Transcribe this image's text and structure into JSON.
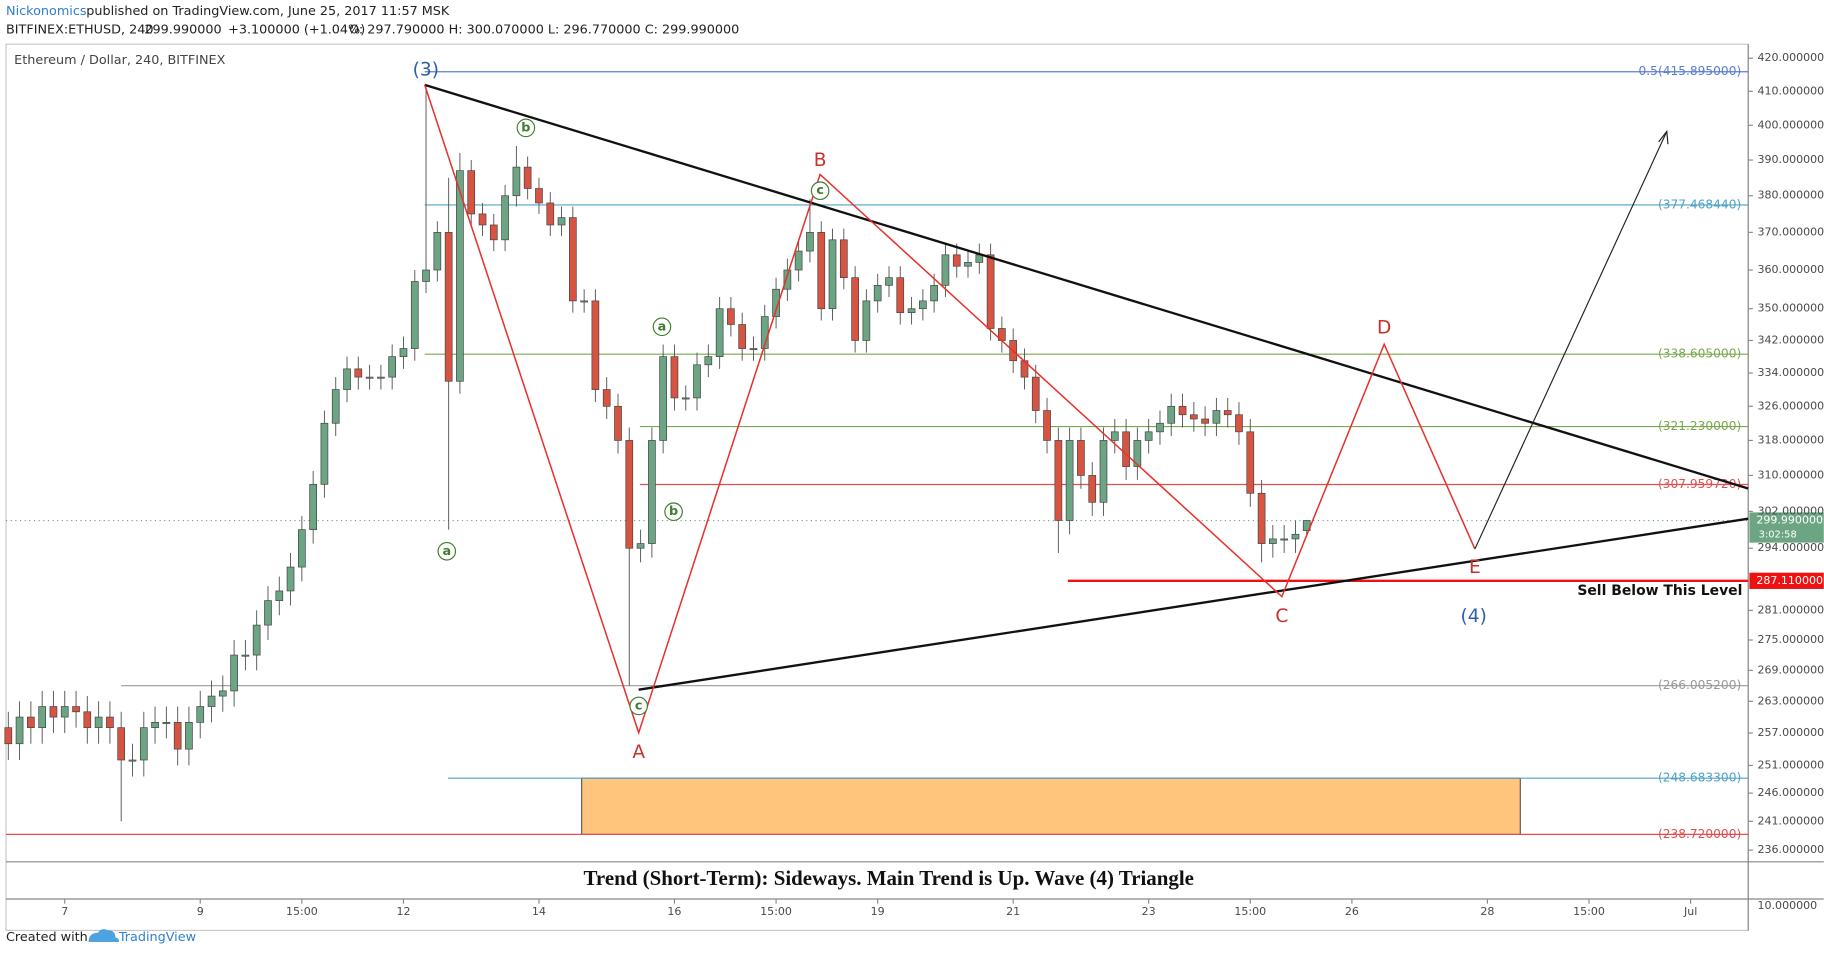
{
  "header": {
    "author": "Nickonomics",
    "published": "published on TradingView.com, June 25, 2017 11:57 MSK",
    "symbol": "BITFINEX:ETHUSD, 240",
    "last": "299.990000",
    "change": "+3.100000 (+1.04%)",
    "ohlc": "O: 297.790000 H: 300.070000 L: 296.770000 C: 299.990000"
  },
  "footer": {
    "created": "Created with",
    "brand": "TradingView"
  },
  "chart_data": {
    "type": "candlestick",
    "title": "Ethereum / Dollar, 240, BITFINEX",
    "caption": "Trend (Short-Term): Sideways. Main Trend is Up. Wave (4) Triangle",
    "note": "Sell Below This Level",
    "log_scale": true,
    "xlim": [
      6.133,
      31.85
    ],
    "ylim": [
      234.2,
      423.6
    ],
    "xticks": [
      {
        "value": 7,
        "label": "7"
      },
      {
        "value": 9,
        "label": "9"
      },
      {
        "value": 10.5,
        "label": "15:00"
      },
      {
        "value": 12,
        "label": "12"
      },
      {
        "value": 14,
        "label": "14"
      },
      {
        "value": 16,
        "label": "16"
      },
      {
        "value": 17.5,
        "label": "15:00"
      },
      {
        "value": 19,
        "label": "19"
      },
      {
        "value": 21,
        "label": "21"
      },
      {
        "value": 23,
        "label": "23"
      },
      {
        "value": 24.5,
        "label": "15:00"
      },
      {
        "value": 26,
        "label": "26"
      },
      {
        "value": 28,
        "label": "28"
      },
      {
        "value": 29.5,
        "label": "15:00"
      },
      {
        "value": 31,
        "label": "Jul"
      }
    ],
    "yticks": [
      {
        "value": 420,
        "label": "420.000000"
      },
      {
        "value": 410,
        "label": "410.000000"
      },
      {
        "value": 400,
        "label": "400.000000"
      },
      {
        "value": 390,
        "label": "390.000000"
      },
      {
        "value": 380,
        "label": "380.000000"
      },
      {
        "value": 370,
        "label": "370.000000"
      },
      {
        "value": 360,
        "label": "360.000000"
      },
      {
        "value": 350,
        "label": "350.000000"
      },
      {
        "value": 342,
        "label": "342.000000"
      },
      {
        "value": 334,
        "label": "334.000000"
      },
      {
        "value": 326,
        "label": "326.000000"
      },
      {
        "value": 318,
        "label": "318.000000"
      },
      {
        "value": 310,
        "label": "310.000000"
      },
      {
        "value": 302,
        "label": "302.000000"
      },
      {
        "value": 294,
        "label": "294.000000"
      },
      {
        "value": 281,
        "label": "281.000000"
      },
      {
        "value": 275,
        "label": "275.000000"
      },
      {
        "value": 269,
        "label": "269.000000"
      },
      {
        "value": 263,
        "label": "263.000000"
      },
      {
        "value": 257,
        "label": "257.000000"
      },
      {
        "value": 251,
        "label": "251.000000"
      },
      {
        "value": 246,
        "label": "246.000000"
      },
      {
        "value": 241,
        "label": "241.000000"
      },
      {
        "value": 236,
        "label": "236.000000"
      }
    ],
    "lower_pane_tick": "10.000000",
    "up_color": "#6ba583",
    "down_color": "#d75442",
    "x": [
      6.167,
      6.333,
      6.5,
      6.667,
      6.833,
      7,
      7.167,
      7.333,
      7.5,
      7.667,
      7.833,
      8,
      8.167,
      8.333,
      8.5,
      8.667,
      8.833,
      9,
      9.167,
      9.333,
      9.5,
      9.667,
      9.833,
      10,
      10.167,
      10.333,
      10.5,
      10.667,
      10.833,
      11,
      11.167,
      11.333,
      11.5,
      11.667,
      11.833,
      12,
      12.167,
      12.333,
      12.5,
      12.667,
      12.833,
      13,
      13.167,
      13.333,
      13.5,
      13.667,
      13.833,
      14,
      14.167,
      14.333,
      14.5,
      14.667,
      14.833,
      15,
      15.167,
      15.333,
      15.5,
      15.667,
      15.833,
      16,
      16.167,
      16.333,
      16.5,
      16.667,
      16.833,
      17,
      17.167,
      17.333,
      17.5,
      17.667,
      17.833,
      18,
      18.167,
      18.333,
      18.5,
      18.667,
      18.833,
      19,
      19.167,
      19.333,
      19.5,
      19.667,
      19.833,
      20,
      20.167,
      20.333,
      20.5,
      20.667,
      20.833,
      21,
      21.167,
      21.333,
      21.5,
      21.667,
      21.833,
      22,
      22.167,
      22.333,
      22.5,
      22.667,
      22.833,
      23,
      23.167,
      23.333,
      23.5,
      23.667,
      23.833,
      24,
      24.167,
      24.333,
      24.5,
      24.667,
      24.833,
      25,
      25.167,
      25.333
    ],
    "open": [
      258,
      255,
      260,
      258,
      262,
      260,
      262,
      261,
      258,
      260,
      258,
      252,
      252,
      258,
      259,
      259,
      254,
      259,
      262,
      264,
      265,
      272,
      272,
      278,
      283,
      285,
      290,
      298,
      308,
      322,
      330,
      335,
      333,
      333,
      333,
      338,
      340,
      357,
      360,
      370,
      332,
      387,
      375,
      372,
      368,
      380,
      388,
      382,
      378,
      372,
      374,
      352,
      352,
      330,
      326,
      318,
      294,
      295,
      318,
      338,
      328,
      328,
      336,
      338,
      350,
      346,
      340,
      340,
      348,
      355,
      360,
      365,
      370,
      350,
      368,
      358,
      342,
      352,
      356,
      358,
      349,
      350,
      352,
      356,
      364,
      361,
      362,
      364,
      345,
      342,
      337,
      333,
      325,
      318,
      300,
      318,
      310,
      304,
      318,
      320,
      312,
      318,
      320,
      322,
      326,
      324,
      323,
      322,
      325,
      324,
      320,
      306,
      295,
      296,
      296,
      297.79
    ],
    "high": [
      261,
      263,
      263,
      265,
      265,
      265,
      265,
      264,
      263,
      263,
      261,
      255,
      261,
      262,
      262,
      262,
      262,
      265,
      267,
      268,
      275,
      275,
      281,
      286,
      288,
      293,
      301,
      311,
      325,
      333,
      338,
      338,
      336,
      336,
      341,
      343,
      360,
      412,
      373,
      385,
      392,
      390,
      378,
      375,
      383,
      394,
      391,
      385,
      381,
      377,
      377,
      355,
      355,
      333,
      329,
      321,
      298,
      321,
      341,
      341,
      331,
      339,
      341,
      353,
      353,
      349,
      343,
      351,
      358,
      363,
      368,
      379,
      373,
      371,
      371,
      361,
      355,
      359,
      361,
      361,
      353,
      355,
      359,
      367,
      367,
      365,
      367,
      367,
      348,
      345,
      340,
      336,
      328,
      321,
      321,
      321,
      313,
      321,
      323,
      323,
      321,
      323,
      325,
      329,
      329,
      327,
      326,
      328,
      328,
      327,
      323,
      309,
      299,
      299,
      300,
      300.07
    ],
    "low": [
      252,
      252,
      255,
      255,
      257,
      257,
      258,
      255,
      255,
      255,
      241,
      249,
      249,
      255,
      256,
      251,
      251,
      256,
      259,
      261,
      262,
      269,
      269,
      275,
      280,
      282,
      287,
      295,
      305,
      319,
      327,
      330,
      330,
      330,
      330,
      335,
      337,
      354,
      357,
      298,
      329,
      372,
      369,
      365,
      365,
      377,
      379,
      375,
      369,
      369,
      349,
      349,
      327,
      323,
      315,
      266,
      291,
      292,
      315,
      325,
      325,
      325,
      333,
      335,
      343,
      337,
      337,
      337,
      345,
      352,
      357,
      362,
      347,
      347,
      355,
      339,
      339,
      349,
      353,
      346,
      346,
      347,
      349,
      353,
      358,
      358,
      359,
      342,
      339,
      334,
      330,
      322,
      315,
      293,
      297,
      307,
      301,
      301,
      315,
      309,
      309,
      315,
      317,
      319,
      321,
      320,
      319,
      319,
      321,
      317,
      303,
      291,
      292,
      293,
      293,
      296.77
    ],
    "close": [
      255,
      260,
      258,
      262,
      260,
      262,
      261,
      258,
      260,
      258,
      252,
      252,
      258,
      259,
      259,
      254,
      259,
      262,
      264,
      265,
      272,
      272,
      278,
      283,
      285,
      290,
      298,
      308,
      322,
      330,
      335,
      333,
      333,
      333,
      338,
      340,
      357,
      360,
      370,
      332,
      387,
      375,
      372,
      368,
      380,
      388,
      382,
      378,
      372,
      374,
      352,
      352,
      330,
      326,
      318,
      294,
      295,
      318,
      338,
      328,
      328,
      336,
      338,
      350,
      346,
      340,
      340,
      348,
      355,
      360,
      365,
      370,
      350,
      368,
      358,
      342,
      352,
      356,
      358,
      349,
      350,
      352,
      356,
      364,
      361,
      362,
      364,
      345,
      342,
      337,
      333,
      325,
      318,
      300,
      318,
      310,
      304,
      318,
      320,
      312,
      318,
      320,
      322,
      326,
      324,
      323,
      322,
      325,
      324,
      320,
      306,
      295,
      296,
      296,
      297,
      299.99
    ],
    "levels": [
      {
        "value": 415.895,
        "label": "0.5(415.895000)",
        "color": "#5b7dd1"
      },
      {
        "value": 377.46844,
        "label": "(377.468440)",
        "color": "#4fa3c7"
      },
      {
        "value": 338.605,
        "label": "(338.605000)",
        "color": "#7aa84f"
      },
      {
        "value": 321.23,
        "label": "(321.230000)",
        "color": "#7aa84f"
      },
      {
        "value": 307.95972,
        "label": "(307.959720)",
        "color": "#e05050"
      },
      {
        "value": 287.11,
        "label": "287.110000",
        "color": "#ee1111"
      },
      {
        "value": 266.0052,
        "label": "(266.005200)",
        "color": "#999999"
      },
      {
        "value": 248.6833,
        "label": "(248.683300)",
        "color": "#4fa3c7"
      },
      {
        "value": 238.72,
        "label": "(238.720000)",
        "color": "#e05050"
      }
    ],
    "current_price": {
      "value": 299.99,
      "label": "299.990000"
    },
    "countdown": "3:02:58",
    "wave_labels": [
      "(3)",
      "A",
      "B",
      "C",
      "D",
      "E",
      "(4)"
    ],
    "subwave_labels": [
      "a",
      "b",
      "c",
      "a",
      "b",
      "c"
    ]
  }
}
